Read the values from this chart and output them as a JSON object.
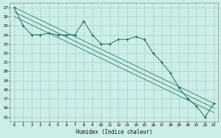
{
  "xlabel": "Humidex (Indice chaleur)",
  "bg_color": "#cceee8",
  "grid_color": "#aacccc",
  "line_color": "#1a6b5a",
  "x_data": [
    0,
    1,
    2,
    3,
    4,
    5,
    6,
    7,
    8,
    9,
    10,
    11,
    12,
    13,
    14,
    15,
    16,
    17,
    18,
    19,
    20,
    21,
    22,
    23
  ],
  "y_main": [
    27,
    25,
    24,
    24,
    24.2,
    24,
    24,
    24,
    25.5,
    24,
    23,
    23,
    23.5,
    23.5,
    23.8,
    23.5,
    22,
    21,
    19.8,
    18.2,
    17,
    16.2,
    15,
    16.5
  ],
  "trend1_x": [
    0,
    23
  ],
  "trend1_y": [
    27,
    16.5
  ],
  "trend2_x": [
    0,
    23
  ],
  "trend2_y": [
    26.5,
    16.0
  ],
  "trend3_x": [
    0,
    23
  ],
  "trend3_y": [
    26.0,
    15.5
  ],
  "ylim": [
    14.5,
    27.5
  ],
  "xlim": [
    -0.5,
    23.5
  ],
  "yticks": [
    15,
    16,
    17,
    18,
    19,
    20,
    21,
    22,
    23,
    24,
    25,
    26,
    27
  ],
  "xticks": [
    0,
    1,
    2,
    3,
    4,
    5,
    6,
    7,
    8,
    9,
    10,
    11,
    12,
    13,
    14,
    15,
    16,
    17,
    18,
    19,
    20,
    21,
    22,
    23
  ]
}
